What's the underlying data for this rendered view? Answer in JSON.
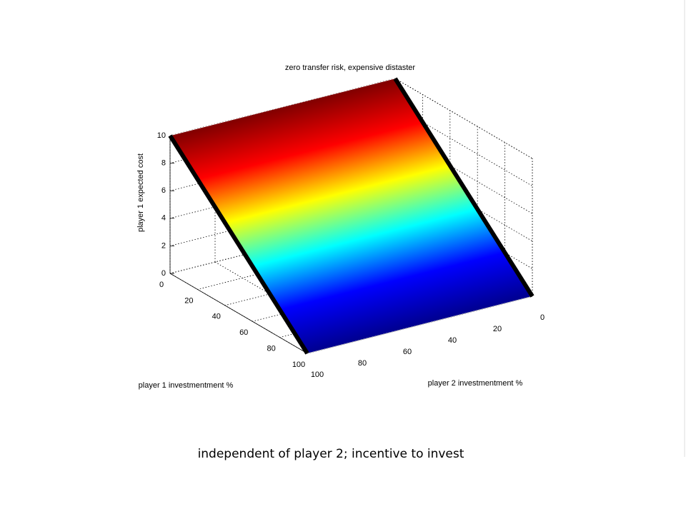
{
  "chart_data": {
    "type": "surface",
    "title": "zero transfer risk, expensive distaster",
    "xlabel": "player 1 investmentment %",
    "ylabel": "player 2 investmentment %",
    "zlabel": "player 1 expected cost",
    "x": [
      0,
      100
    ],
    "y": [
      0,
      100
    ],
    "z": [
      [
        10,
        10
      ],
      [
        0,
        0
      ]
    ],
    "xlim": [
      0,
      100
    ],
    "ylim": [
      0,
      100
    ],
    "zlim": [
      0,
      10
    ],
    "xticks": [
      0,
      20,
      40,
      60,
      80,
      100
    ],
    "yticks": [
      0,
      20,
      40,
      60,
      80,
      100
    ],
    "zticks": [
      0,
      2,
      4,
      6,
      8,
      10
    ],
    "colormap": "jet",
    "grid": true
  },
  "caption": "independent of player 2; incentive to invest"
}
